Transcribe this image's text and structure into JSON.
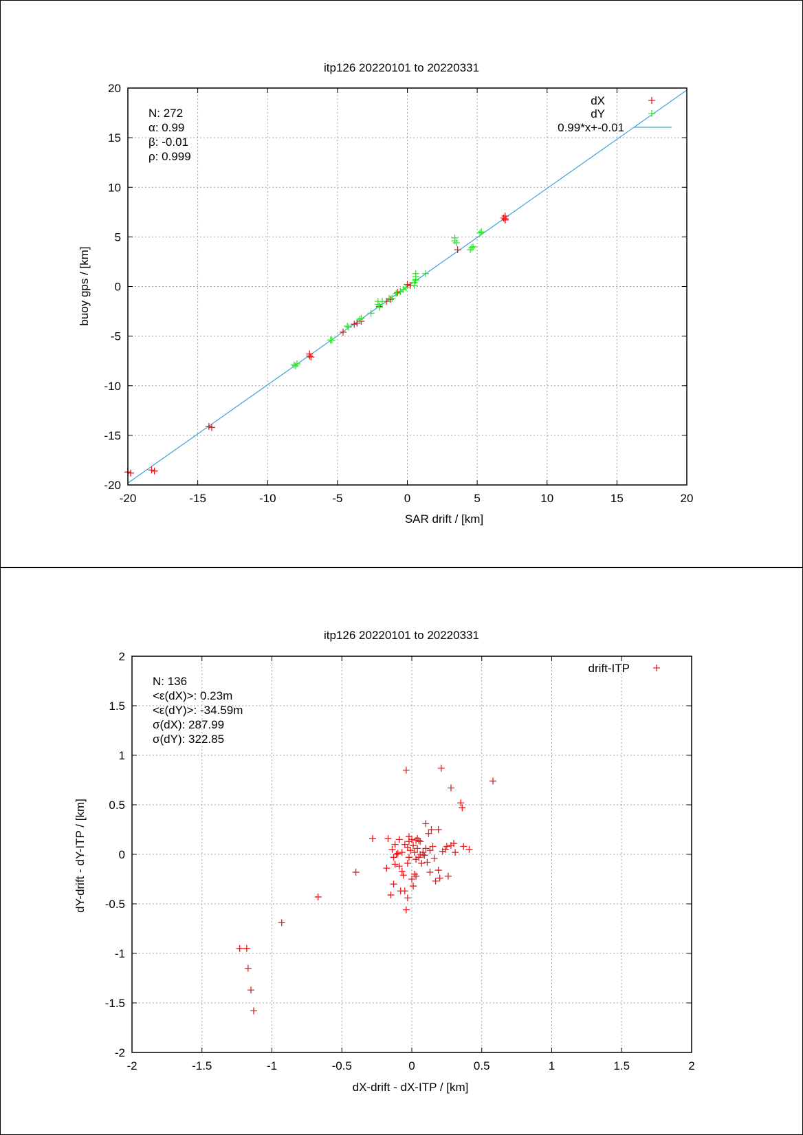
{
  "chart_data": [
    {
      "type": "scatter",
      "title": "itp126 20220101 to 20220331",
      "xlabel": "SAR drift / [km]",
      "ylabel": "buoy gps / [km]",
      "xlim": [
        -20,
        20
      ],
      "ylim": [
        -20,
        20
      ],
      "xticks": [
        -20,
        -15,
        -10,
        -5,
        0,
        5,
        10,
        15,
        20
      ],
      "yticks": [
        -20,
        -15,
        -10,
        -5,
        0,
        5,
        10,
        15,
        20
      ],
      "grid": true,
      "legend_position": "top-right",
      "stats": [
        "N: 272",
        "α: 0.99",
        "β: -0.01",
        "ρ: 0.999"
      ],
      "series": [
        {
          "name": "dX",
          "color": "#e41a1c",
          "marker": "plus",
          "points": [
            [
              -20.0,
              -18.7
            ],
            [
              -19.8,
              -18.8
            ],
            [
              -18.3,
              -18.5
            ],
            [
              -18.1,
              -18.6
            ],
            [
              -14.2,
              -14.1
            ],
            [
              -14.0,
              -14.2
            ],
            [
              -7.0,
              -6.8
            ],
            [
              -6.9,
              -7.1
            ],
            [
              -7.0,
              -7.0
            ],
            [
              -4.6,
              -4.6
            ],
            [
              -3.6,
              -3.7
            ],
            [
              -3.8,
              -3.8
            ],
            [
              -3.3,
              -3.5
            ],
            [
              -2.0,
              -2.0
            ],
            [
              -1.5,
              -1.5
            ],
            [
              -1.2,
              -1.3
            ],
            [
              -0.7,
              -0.6
            ],
            [
              -0.5,
              -0.5
            ],
            [
              0.0,
              0.2
            ],
            [
              0.2,
              0.1
            ],
            [
              3.6,
              3.7
            ],
            [
              7.0,
              6.8
            ],
            [
              7.0,
              7.1
            ],
            [
              6.9,
              6.9
            ],
            [
              7.0,
              6.7
            ]
          ]
        },
        {
          "name": "dY",
          "color": "#33e633",
          "marker": "plus",
          "points": [
            [
              -8.1,
              -7.9
            ],
            [
              -8.0,
              -8.0
            ],
            [
              -7.9,
              -7.8
            ],
            [
              -5.5,
              -5.4
            ],
            [
              -5.4,
              -5.4
            ],
            [
              -4.3,
              -4.0
            ],
            [
              -4.2,
              -4.1
            ],
            [
              -3.4,
              -3.3
            ],
            [
              -3.3,
              -3.2
            ],
            [
              -2.6,
              -2.7
            ],
            [
              -2.1,
              -1.5
            ],
            [
              -2.1,
              -1.8
            ],
            [
              -2.0,
              -2.1
            ],
            [
              -1.8,
              -1.5
            ],
            [
              -1.3,
              -1.2
            ],
            [
              -1.1,
              -1.2
            ],
            [
              -0.8,
              -0.7
            ],
            [
              -0.5,
              -0.5
            ],
            [
              -0.3,
              -0.3
            ],
            [
              -0.1,
              -0.1
            ],
            [
              0.5,
              0.1
            ],
            [
              0.5,
              0.4
            ],
            [
              0.6,
              0.7
            ],
            [
              0.6,
              1.0
            ],
            [
              0.6,
              1.3
            ],
            [
              0.6,
              0.6
            ],
            [
              1.3,
              1.3
            ],
            [
              3.4,
              4.6
            ],
            [
              3.4,
              4.9
            ],
            [
              3.5,
              4.4
            ],
            [
              4.5,
              3.7
            ],
            [
              4.7,
              4.0
            ],
            [
              4.6,
              3.9
            ],
            [
              5.2,
              5.4
            ],
            [
              5.3,
              5.5
            ]
          ]
        }
      ],
      "fit": {
        "name": "0.99*x+-0.01",
        "slope": 0.99,
        "intercept": -0.01,
        "color": "#3ba3d9"
      }
    },
    {
      "type": "scatter",
      "title": "itp126 20220101 to 20220331",
      "xlabel": "dX-drift - dX-ITP / [km]",
      "ylabel": "dY-drift - dY-ITP / [km]",
      "xlim": [
        -2,
        2
      ],
      "ylim": [
        -2,
        2
      ],
      "xticks": [
        -2,
        -1.5,
        -1,
        -0.5,
        0,
        0.5,
        1,
        1.5,
        2
      ],
      "yticks": [
        -2,
        -1.5,
        -1,
        -0.5,
        0,
        0.5,
        1,
        1.5,
        2
      ],
      "grid": true,
      "legend_position": "top-right",
      "stats": [
        "N: 136",
        "<ε(dX)>:  0.23m",
        "<ε(dY)>: -34.59m",
        "σ(dX):  287.99",
        "σ(dY):  322.85"
      ],
      "series": [
        {
          "name": "drift-ITP",
          "color": "#e41a1c",
          "marker": "plus",
          "points": [
            [
              -1.23,
              -0.95
            ],
            [
              -1.18,
              -0.95
            ],
            [
              -1.17,
              -1.15
            ],
            [
              -1.15,
              -1.37
            ],
            [
              -1.13,
              -1.58
            ],
            [
              -0.93,
              -0.69
            ],
            [
              -0.67,
              -0.43
            ],
            [
              -0.4,
              -0.18
            ],
            [
              -0.04,
              0.85
            ],
            [
              0.21,
              0.87
            ],
            [
              0.28,
              0.67
            ],
            [
              0.58,
              0.74
            ],
            [
              0.35,
              0.52
            ],
            [
              0.36,
              0.47
            ],
            [
              -0.28,
              0.16
            ],
            [
              -0.18,
              -0.14
            ],
            [
              -0.17,
              0.16
            ],
            [
              -0.14,
              0.05
            ],
            [
              -0.13,
              -0.03
            ],
            [
              -0.12,
              -0.1
            ],
            [
              -0.11,
              0.0
            ],
            [
              -0.1,
              0.01
            ],
            [
              -0.09,
              0.15
            ],
            [
              -0.09,
              -0.12
            ],
            [
              -0.07,
              0.02
            ],
            [
              -0.07,
              -0.17
            ],
            [
              -0.06,
              -0.21
            ],
            [
              -0.05,
              0.1
            ],
            [
              -0.05,
              -0.37
            ],
            [
              -0.03,
              0.07
            ],
            [
              -0.03,
              -0.09
            ],
            [
              -0.02,
              0.18
            ],
            [
              -0.02,
              -0.03
            ],
            [
              -0.01,
              0.04
            ],
            [
              0.0,
              0.15
            ],
            [
              0.0,
              -0.25
            ],
            [
              0.01,
              0.09
            ],
            [
              0.01,
              -0.32
            ],
            [
              0.02,
              0.02
            ],
            [
              0.02,
              -0.2
            ],
            [
              0.03,
              0.14
            ],
            [
              0.03,
              -0.05
            ],
            [
              0.04,
              0.16
            ],
            [
              0.04,
              0.06
            ],
            [
              0.05,
              -0.03
            ],
            [
              0.05,
              0.14
            ],
            [
              0.06,
              0.13
            ],
            [
              0.07,
              -0.09
            ],
            [
              0.08,
              0.02
            ],
            [
              0.09,
              -0.01
            ],
            [
              0.1,
              0.31
            ],
            [
              0.1,
              0.06
            ],
            [
              0.11,
              -0.08
            ],
            [
              0.12,
              0.21
            ],
            [
              0.13,
              0.04
            ],
            [
              0.13,
              -0.18
            ],
            [
              0.14,
              0.25
            ],
            [
              0.15,
              0.08
            ],
            [
              0.16,
              -0.04
            ],
            [
              0.17,
              -0.27
            ],
            [
              0.19,
              0.25
            ],
            [
              0.19,
              -0.16
            ],
            [
              0.2,
              -0.24
            ],
            [
              0.22,
              0.03
            ],
            [
              0.24,
              0.05
            ],
            [
              0.25,
              0.08
            ],
            [
              0.26,
              -0.22
            ],
            [
              0.28,
              0.09
            ],
            [
              0.3,
              0.11
            ],
            [
              0.31,
              0.02
            ],
            [
              0.37,
              0.08
            ],
            [
              0.41,
              0.05
            ],
            [
              -0.15,
              -0.41
            ],
            [
              -0.13,
              -0.3
            ],
            [
              -0.08,
              -0.37
            ],
            [
              -0.03,
              -0.44
            ],
            [
              -0.04,
              -0.56
            ],
            [
              -0.12,
              0.1
            ],
            [
              -0.02,
              0.13
            ],
            [
              0.03,
              -0.22
            ],
            [
              0.06,
              0.0
            ],
            [
              0.08,
              0.0
            ]
          ]
        }
      ]
    }
  ]
}
